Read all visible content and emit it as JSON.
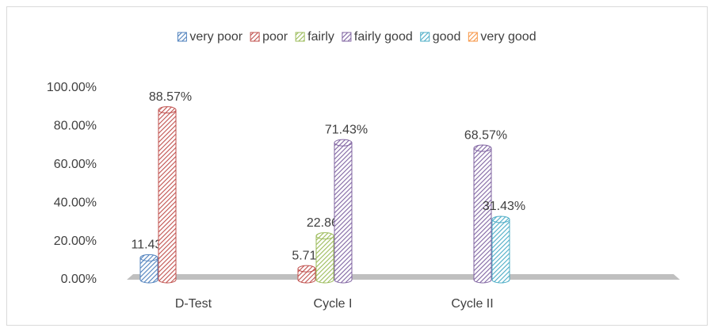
{
  "chart_data": {
    "type": "bar",
    "categories": [
      "D-Test",
      "Cycle I",
      "Cycle II"
    ],
    "series": [
      {
        "name": "very poor",
        "color": "#4f81bd",
        "values": [
          11.43,
          null,
          null
        ],
        "value_labels": [
          "11.43%",
          null,
          null
        ]
      },
      {
        "name": "poor",
        "color": "#c0504d",
        "values": [
          88.57,
          5.71,
          null
        ],
        "value_labels": [
          "88.57%",
          "5.71%",
          null
        ]
      },
      {
        "name": "fairly",
        "color": "#9bbb59",
        "values": [
          null,
          22.86,
          null
        ],
        "value_labels": [
          null,
          "22.86%",
          null
        ]
      },
      {
        "name": "fairly good",
        "color": "#8064a2",
        "values": [
          null,
          71.43,
          68.57
        ],
        "value_labels": [
          null,
          "71.43%",
          "68.57%"
        ]
      },
      {
        "name": "good",
        "color": "#4bacc6",
        "values": [
          null,
          null,
          31.43
        ],
        "value_labels": [
          null,
          null,
          "31.43%"
        ]
      },
      {
        "name": "very good",
        "color": "#f79646",
        "values": [
          null,
          null,
          null
        ],
        "value_labels": [
          null,
          null,
          null
        ]
      }
    ],
    "ylim": [
      0,
      100
    ],
    "yticks": [
      {
        "value": 0,
        "label": "0.00%"
      },
      {
        "value": 20,
        "label": "20.00%"
      },
      {
        "value": 40,
        "label": "40.00%"
      },
      {
        "value": 60,
        "label": "60.00%"
      },
      {
        "value": 80,
        "label": "80.00%"
      },
      {
        "value": 100,
        "label": "100.00%"
      }
    ],
    "legend": "top",
    "grid": false
  }
}
